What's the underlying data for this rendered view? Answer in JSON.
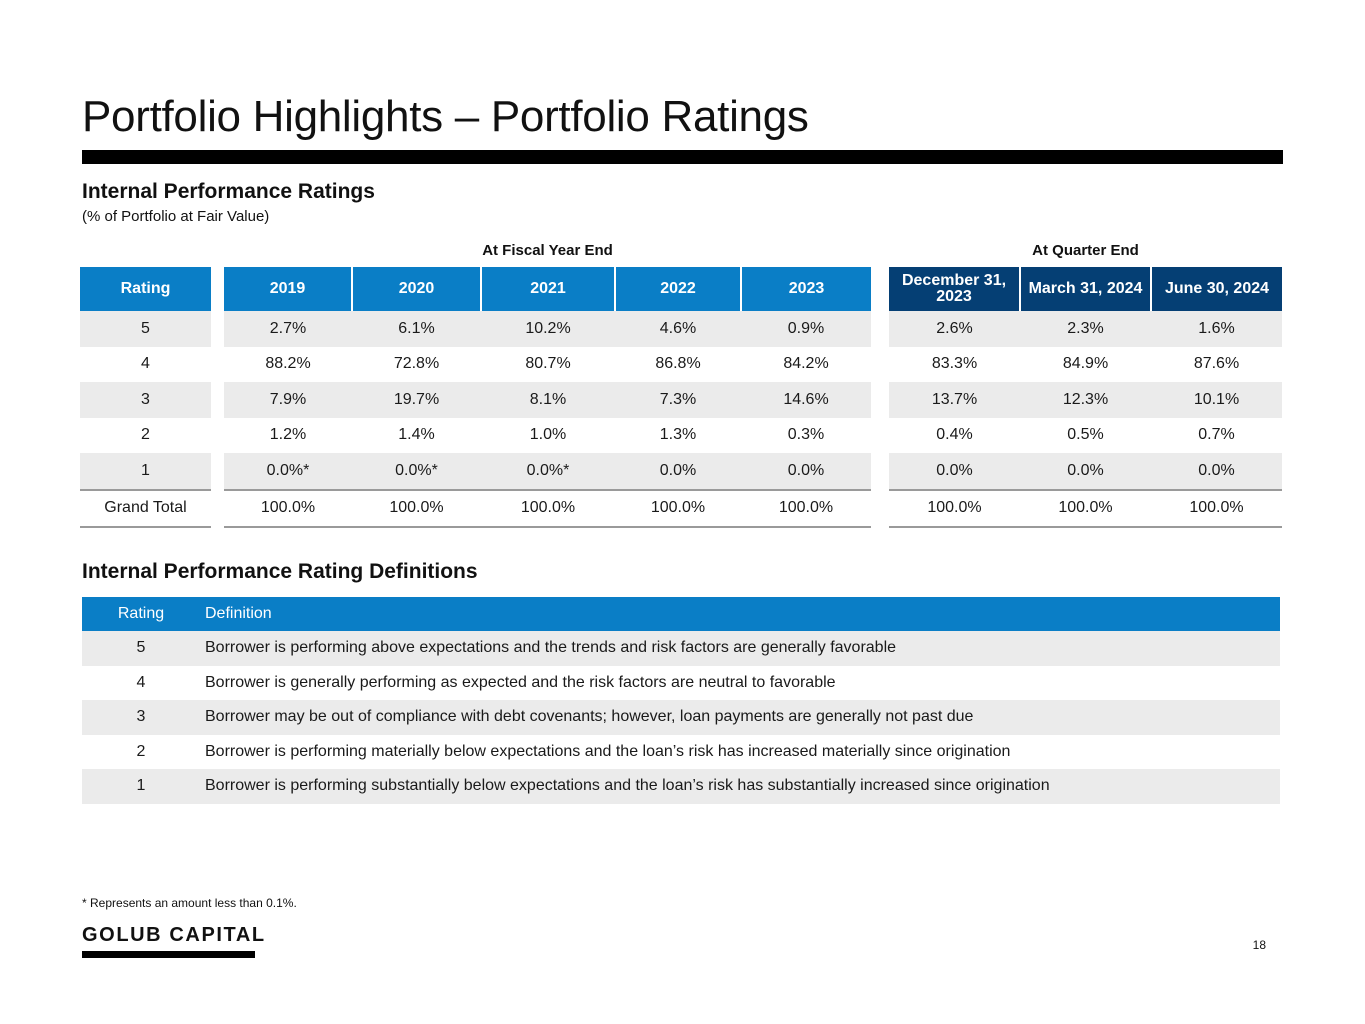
{
  "page": {
    "title": "Portfolio Highlights – Portfolio Ratings",
    "page_number": "18",
    "footnote": "* Represents an amount less than 0.1%.",
    "logo_text": "GOLUB CAPITAL"
  },
  "ratings_table": {
    "heading": "Internal Performance Ratings",
    "subheading": "(% of Portfolio at Fair Value)",
    "fiscal_group_label": "At Fiscal Year End",
    "quarter_group_label": "At Quarter End",
    "rating_header": "Rating",
    "fiscal_headers": [
      "2019",
      "2020",
      "2021",
      "2022",
      "2023"
    ],
    "quarter_headers": [
      "December 31, 2023",
      "March 31, 2024",
      "June 30, 2024"
    ],
    "rows": [
      {
        "rating": "5",
        "fiscal": [
          "2.7%",
          "6.1%",
          "10.2%",
          "4.6%",
          "0.9%"
        ],
        "quarter": [
          "2.6%",
          "2.3%",
          "1.6%"
        ]
      },
      {
        "rating": "4",
        "fiscal": [
          "88.2%",
          "72.8%",
          "80.7%",
          "86.8%",
          "84.2%"
        ],
        "quarter": [
          "83.3%",
          "84.9%",
          "87.6%"
        ]
      },
      {
        "rating": "3",
        "fiscal": [
          "7.9%",
          "19.7%",
          "8.1%",
          "7.3%",
          "14.6%"
        ],
        "quarter": [
          "13.7%",
          "12.3%",
          "10.1%"
        ]
      },
      {
        "rating": "2",
        "fiscal": [
          "1.2%",
          "1.4%",
          "1.0%",
          "1.3%",
          "0.3%"
        ],
        "quarter": [
          "0.4%",
          "0.5%",
          "0.7%"
        ]
      },
      {
        "rating": "1",
        "fiscal": [
          "0.0%*",
          "0.0%*",
          "0.0%*",
          "0.0%",
          "0.0%"
        ],
        "quarter": [
          "0.0%",
          "0.0%",
          "0.0%"
        ]
      },
      {
        "rating": "Grand Total",
        "fiscal": [
          "100.0%",
          "100.0%",
          "100.0%",
          "100.0%",
          "100.0%"
        ],
        "quarter": [
          "100.0%",
          "100.0%",
          "100.0%"
        ]
      }
    ]
  },
  "definitions": {
    "heading": "Internal Performance Rating Definitions",
    "rating_header": "Rating",
    "definition_header": "Definition",
    "rows": [
      {
        "rating": "5",
        "definition": "Borrower is performing above expectations and the trends and risk factors are generally favorable"
      },
      {
        "rating": "4",
        "definition": "Borrower is generally performing as expected and the risk factors are neutral to favorable"
      },
      {
        "rating": "3",
        "definition": "Borrower may be out of compliance with debt covenants; however, loan payments are generally not past due"
      },
      {
        "rating": "2",
        "definition": "Borrower is performing materially below expectations and the loan’s risk has increased materially since origination"
      },
      {
        "rating": "1",
        "definition": "Borrower is performing substantially below expectations and the loan’s risk has substantially increased since origination"
      }
    ]
  },
  "colors": {
    "header_blue": "#0a7ec6",
    "header_navy": "#053f74",
    "stripe_gray": "#ebebeb"
  }
}
